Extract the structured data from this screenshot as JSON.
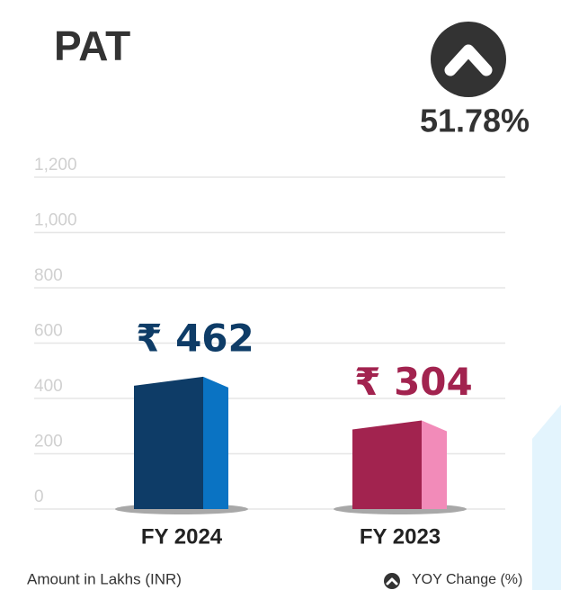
{
  "title": "PAT",
  "yoy_change": "51.78%",
  "chart_data": {
    "type": "bar",
    "categories": [
      "FY 2024",
      "FY 2023"
    ],
    "values": [
      462,
      304
    ],
    "value_labels": [
      "₹ 462",
      "₹ 304"
    ],
    "colors": [
      "#0e3c67",
      "#a2234f"
    ],
    "side_colors": [
      "#0a73c3",
      "#f28bb9"
    ],
    "ylim": [
      0,
      1200
    ],
    "yticks": [
      0,
      200,
      400,
      600,
      800,
      {
        "value": 1000,
        "label": "1,000"
      },
      {
        "value": 1200,
        "label": "1,200"
      }
    ],
    "grid": true
  },
  "footer": {
    "note": "Amount in Lakhs (INR)",
    "legend": "YOY Change (%)"
  }
}
